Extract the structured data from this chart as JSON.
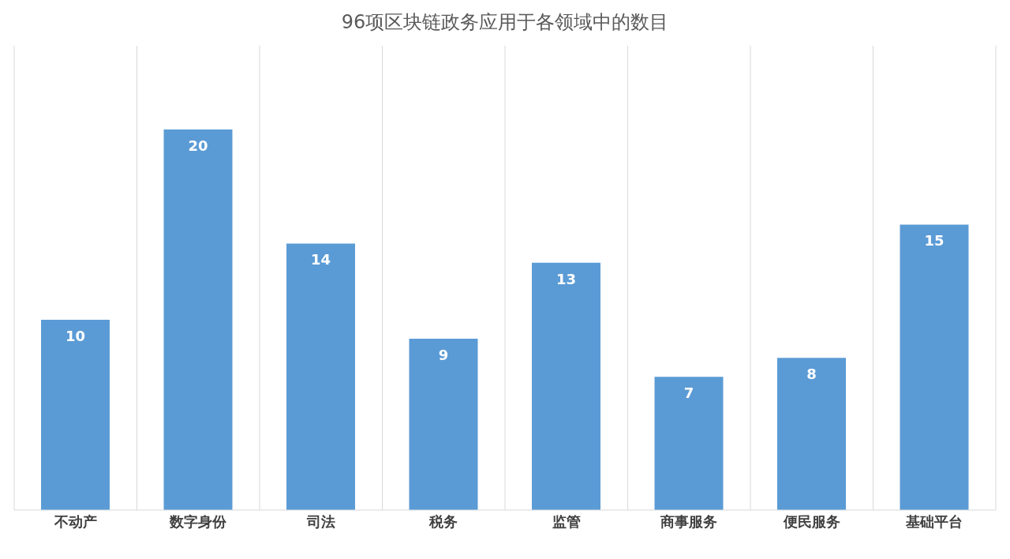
{
  "chart_data": {
    "type": "bar",
    "title": "96项区块链政务应用于各领域中的数目",
    "categories": [
      "不动产",
      "数字身份",
      "司法",
      "税务",
      "监管",
      "商事服务",
      "便民服务",
      "基础平台"
    ],
    "values": [
      10,
      20,
      14,
      9,
      13,
      7,
      8,
      15
    ],
    "color": "#5b9bd5",
    "data_labels": true,
    "grid": "x"
  }
}
